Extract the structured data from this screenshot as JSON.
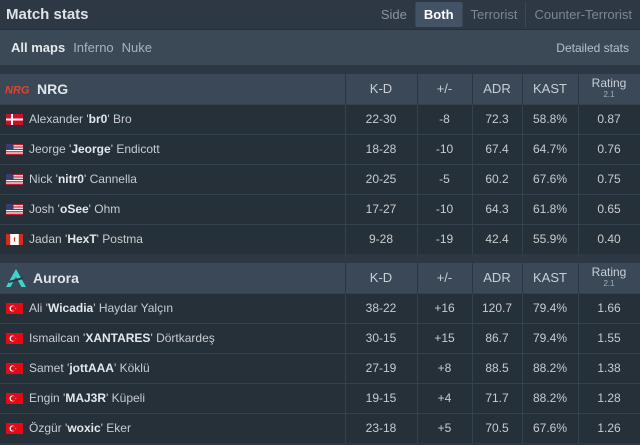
{
  "header": {
    "title": "Match stats",
    "side_label": "Side",
    "side_options": [
      "Both",
      "Terrorist",
      "Counter-Terrorist"
    ]
  },
  "maps": {
    "items": [
      "All maps",
      "Inferno",
      "Nuke"
    ],
    "detailed_link": "Detailed stats"
  },
  "columns": {
    "kd": "K-D",
    "plus_minus": "+/-",
    "adr": "ADR",
    "kast": "KAST",
    "rating": "Rating",
    "rating_version": "2.1"
  },
  "teams": [
    {
      "name": "NRG",
      "logo": "NRG",
      "players": [
        {
          "first": "Alexander '",
          "nick": "br0",
          "last": "' Bro",
          "flag": "denmark",
          "kd": "22-30",
          "pm": "-8",
          "adr": "72.3",
          "kast": "58.8%",
          "rating": "0.87"
        },
        {
          "first": "Jeorge '",
          "nick": "Jeorge",
          "last": "' Endicott",
          "flag": "usa",
          "kd": "18-28",
          "pm": "-10",
          "adr": "67.4",
          "kast": "64.7%",
          "rating": "0.76"
        },
        {
          "first": "Nick '",
          "nick": "nitr0",
          "last": "' Cannella",
          "flag": "usa",
          "kd": "20-25",
          "pm": "-5",
          "adr": "60.2",
          "kast": "67.6%",
          "rating": "0.75"
        },
        {
          "first": "Josh '",
          "nick": "oSee",
          "last": "' Ohm",
          "flag": "usa",
          "kd": "17-27",
          "pm": "-10",
          "adr": "64.3",
          "kast": "61.8%",
          "rating": "0.65"
        },
        {
          "first": "Jadan '",
          "nick": "HexT",
          "last": "' Postma",
          "flag": "canada",
          "kd": "9-28",
          "pm": "-19",
          "adr": "42.4",
          "kast": "55.9%",
          "rating": "0.40"
        }
      ]
    },
    {
      "name": "Aurora",
      "logo": "aurora",
      "players": [
        {
          "first": "Ali '",
          "nick": "Wicadia",
          "last": "' Haydar Yalçın",
          "flag": "turkey",
          "kd": "38-22",
          "pm": "+16",
          "adr": "120.7",
          "kast": "79.4%",
          "rating": "1.66"
        },
        {
          "first": "Ismailcan '",
          "nick": "XANTARES",
          "last": "' Dörtkardeş",
          "flag": "turkey",
          "kd": "30-15",
          "pm": "+15",
          "adr": "86.7",
          "kast": "79.4%",
          "rating": "1.55"
        },
        {
          "first": "Samet '",
          "nick": "jottAAA",
          "last": "' Köklü",
          "flag": "turkey",
          "kd": "27-19",
          "pm": "+8",
          "adr": "88.5",
          "kast": "88.2%",
          "rating": "1.38"
        },
        {
          "first": "Engin '",
          "nick": "MAJ3R",
          "last": "' Küpeli",
          "flag": "turkey",
          "kd": "19-15",
          "pm": "+4",
          "adr": "71.7",
          "kast": "88.2%",
          "rating": "1.28"
        },
        {
          "first": "Özgür '",
          "nick": "woxic",
          "last": "' Eker",
          "flag": "turkey",
          "kd": "23-18",
          "pm": "+5",
          "adr": "70.5",
          "kast": "67.6%",
          "rating": "1.26"
        }
      ]
    }
  ],
  "colors": {
    "negative": "#e94646",
    "positive": "#49c24b",
    "nrg_logo": "#e0452c",
    "aurora_logo": "#3fd3c9"
  }
}
